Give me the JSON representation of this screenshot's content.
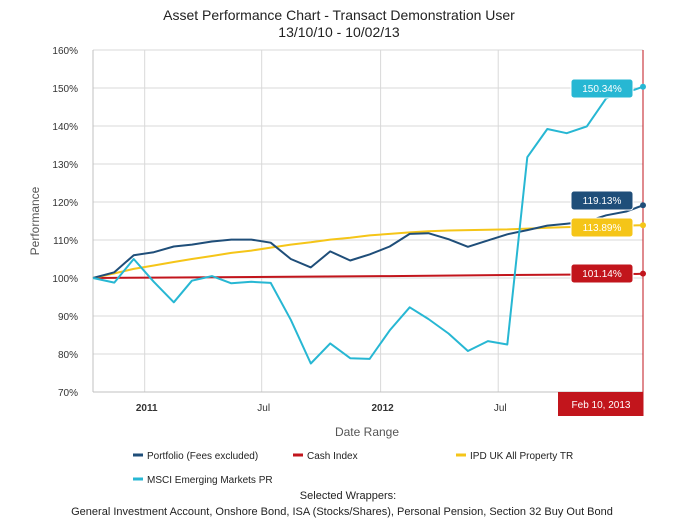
{
  "chart_data": {
    "type": "line",
    "title": "Asset Performance Chart - Transact Demonstration User",
    "subtitle": "13/10/10 - 10/02/13",
    "xlabel": "Date Range",
    "ylabel": "Performance",
    "ylim": [
      70,
      160
    ],
    "y_ticks": [
      "70%",
      "80%",
      "90%",
      "100%",
      "110%",
      "120%",
      "130%",
      "140%",
      "150%",
      "160%"
    ],
    "x_range": [
      "2010-10-13",
      "2013-02-10"
    ],
    "x_ticks": [
      {
        "date": "2011-01-01",
        "label": "2011",
        "bold": true
      },
      {
        "date": "2011-07-01",
        "label": "Jul",
        "bold": false
      },
      {
        "date": "2012-01-01",
        "label": "2012",
        "bold": true
      },
      {
        "date": "2012-07-01",
        "label": "Jul",
        "bold": false
      }
    ],
    "grid": true,
    "legend_position": "bottom",
    "selected_marker": {
      "date": "2013-02-10",
      "label": "Feb 10, 2013",
      "color": "#c2151c"
    },
    "series": [
      {
        "name": "Portfolio (Fees excluded)",
        "color": "#1f4e79",
        "end_label": "119.13%",
        "points": [
          [
            "2010-10-13",
            100
          ],
          [
            "2010-11-15",
            101.5
          ],
          [
            "2010-12-15",
            106
          ],
          [
            "2011-01-15",
            106.8
          ],
          [
            "2011-02-15",
            108.3
          ],
          [
            "2011-03-15",
            108.8
          ],
          [
            "2011-04-15",
            109.6
          ],
          [
            "2011-05-15",
            110.1
          ],
          [
            "2011-06-15",
            110.1
          ],
          [
            "2011-07-15",
            109.3
          ],
          [
            "2011-08-15",
            105
          ],
          [
            "2011-09-15",
            102.8
          ],
          [
            "2011-10-15",
            107
          ],
          [
            "2011-11-15",
            104.6
          ],
          [
            "2011-12-15",
            106.2
          ],
          [
            "2012-01-15",
            108.3
          ],
          [
            "2012-02-15",
            111.6
          ],
          [
            "2012-03-15",
            111.8
          ],
          [
            "2012-04-15",
            110.2
          ],
          [
            "2012-05-15",
            108.2
          ],
          [
            "2012-06-15",
            109.9
          ],
          [
            "2012-07-15",
            111.5
          ],
          [
            "2012-08-15",
            112.6
          ],
          [
            "2012-09-15",
            113.8
          ],
          [
            "2012-10-15",
            114.3
          ],
          [
            "2012-11-15",
            114.9
          ],
          [
            "2012-12-15",
            116.5
          ],
          [
            "2013-01-15",
            117.5
          ],
          [
            "2013-02-10",
            119.13
          ]
        ]
      },
      {
        "name": "Cash Index",
        "color": "#c2151c",
        "end_label": "101.14%",
        "points": [
          [
            "2010-10-13",
            100
          ],
          [
            "2011-01-15",
            100.1
          ],
          [
            "2011-07-15",
            100.3
          ],
          [
            "2012-01-15",
            100.5
          ],
          [
            "2012-07-15",
            100.8
          ],
          [
            "2013-01-15",
            101
          ],
          [
            "2013-02-10",
            101.14
          ]
        ]
      },
      {
        "name": "IPD UK All Property TR",
        "color": "#f5c518",
        "end_label": "113.89%",
        "points": [
          [
            "2010-10-13",
            100
          ],
          [
            "2010-11-15",
            101.2
          ],
          [
            "2010-12-15",
            102.4
          ],
          [
            "2011-01-15",
            103.3
          ],
          [
            "2011-02-15",
            104.2
          ],
          [
            "2011-03-15",
            105
          ],
          [
            "2011-04-15",
            105.8
          ],
          [
            "2011-05-15",
            106.6
          ],
          [
            "2011-06-15",
            107.2
          ],
          [
            "2011-07-15",
            108
          ],
          [
            "2011-08-15",
            108.8
          ],
          [
            "2011-09-15",
            109.4
          ],
          [
            "2011-10-15",
            110.1
          ],
          [
            "2011-11-15",
            110.6
          ],
          [
            "2011-12-15",
            111.2
          ],
          [
            "2012-01-15",
            111.6
          ],
          [
            "2012-02-15",
            112
          ],
          [
            "2012-03-15",
            112.3
          ],
          [
            "2012-04-15",
            112.5
          ],
          [
            "2012-05-15",
            112.6
          ],
          [
            "2012-06-15",
            112.7
          ],
          [
            "2012-07-15",
            112.8
          ],
          [
            "2012-08-15",
            113
          ],
          [
            "2012-09-15",
            113.2
          ],
          [
            "2012-10-15",
            113.4
          ],
          [
            "2012-11-15",
            113.5
          ],
          [
            "2012-12-15",
            113.7
          ],
          [
            "2013-01-15",
            113.8
          ],
          [
            "2013-02-10",
            113.89
          ]
        ]
      },
      {
        "name": "MSCI Emerging Markets PR",
        "color": "#27b7d3",
        "end_label": "150.34%",
        "points": [
          [
            "2010-10-13",
            100
          ],
          [
            "2010-11-15",
            98.8
          ],
          [
            "2010-12-15",
            105
          ],
          [
            "2011-01-15",
            99
          ],
          [
            "2011-02-15",
            93.6
          ],
          [
            "2011-03-15",
            99.3
          ],
          [
            "2011-04-15",
            100.5
          ],
          [
            "2011-05-15",
            98.6
          ],
          [
            "2011-06-15",
            99
          ],
          [
            "2011-07-15",
            98.7
          ],
          [
            "2011-08-15",
            89
          ],
          [
            "2011-09-15",
            77.5
          ],
          [
            "2011-10-15",
            82.8
          ],
          [
            "2011-11-15",
            78.9
          ],
          [
            "2011-12-15",
            78.7
          ],
          [
            "2012-01-15",
            86.2
          ],
          [
            "2012-02-15",
            92.3
          ],
          [
            "2012-03-15",
            89.2
          ],
          [
            "2012-04-15",
            85.4
          ],
          [
            "2012-05-15",
            80.8
          ],
          [
            "2012-06-15",
            83.4
          ],
          [
            "2012-07-15",
            82.5
          ],
          [
            "2012-08-15",
            131.8
          ],
          [
            "2012-09-15",
            139.2
          ],
          [
            "2012-10-15",
            138.1
          ],
          [
            "2012-11-15",
            139.9
          ],
          [
            "2012-12-15",
            147.3
          ],
          [
            "2013-01-15",
            148.8
          ],
          [
            "2013-02-10",
            150.34
          ]
        ]
      }
    ]
  },
  "legend": {
    "items": [
      {
        "label": "Portfolio (Fees excluded)",
        "color": "#1f4e79"
      },
      {
        "label": "Cash Index",
        "color": "#c2151c"
      },
      {
        "label": "IPD UK All Property TR",
        "color": "#f5c518"
      },
      {
        "label": "MSCI Emerging Markets PR",
        "color": "#27b7d3"
      }
    ]
  },
  "wrappers": {
    "heading": "Selected Wrappers:",
    "text": "General Investment Account, Onshore Bond, ISA (Stocks/Shares), Personal Pension, Section 32 Buy Out Bond"
  }
}
